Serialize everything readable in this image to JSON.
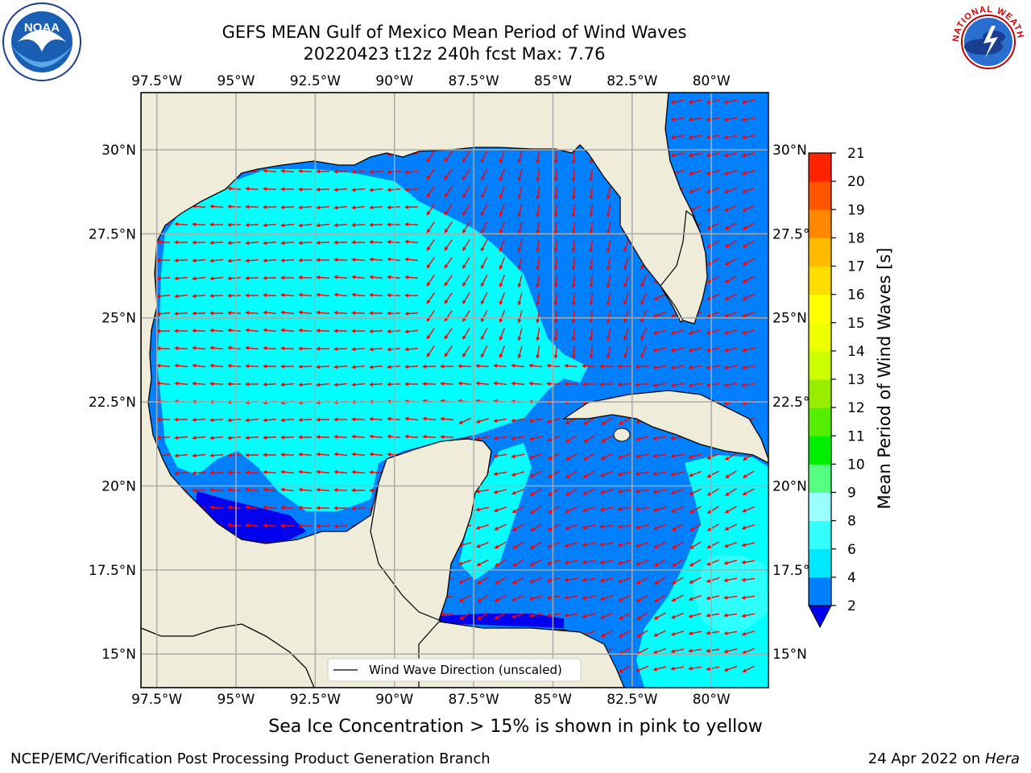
{
  "title_line1": "GEFS MEAN Gulf of Mexico Mean Period of Wind Waves",
  "title_line2": "20220423 t12z 240h fcst   Max: 7.76",
  "map": {
    "lon_ticks": [
      "97.5°W",
      "95°W",
      "92.5°W",
      "90°W",
      "87.5°W",
      "85°W",
      "82.5°W",
      "80°W"
    ],
    "lon_values": [
      -97.5,
      -95,
      -92.5,
      -90,
      -87.5,
      -85,
      -82.5,
      -80
    ],
    "lat_ticks": [
      "30°N",
      "27.5°N",
      "25°N",
      "22.5°N",
      "20°N",
      "17.5°N",
      "15°N"
    ],
    "lat_values": [
      30,
      27.5,
      25,
      22.5,
      20,
      17.5,
      15
    ],
    "lon_range": [
      -98,
      -78.2
    ],
    "lat_range": [
      14,
      31.7
    ],
    "land_color": "#efedda",
    "arrow_color": "#ff0000",
    "legend_label": "Wind Wave Direction (unscaled)"
  },
  "colorbar": {
    "label": "Mean Period of Wind Waves [s]",
    "ticks": [
      "2",
      "4",
      "6",
      "8",
      "9",
      "10",
      "11",
      "12",
      "13",
      "14",
      "15",
      "16",
      "17",
      "18",
      "19",
      "20",
      "21"
    ],
    "colors": [
      "#0080ff",
      "#00e8ff",
      "#33ffff",
      "#99ffff",
      "#55ff7f",
      "#00ee00",
      "#55ee00",
      "#99ee00",
      "#ccff00",
      "#eeff00",
      "#ffff00",
      "#ffdd00",
      "#ffbb00",
      "#ff8800",
      "#ff5500",
      "#ff2200"
    ],
    "under_color": "#0000ee"
  },
  "subtitle": "Sea Ice Concentration > 15% is shown in pink to yellow",
  "credit": "NCEP/EMC/Verification Post Processing Product Generation Branch",
  "date": "24 Apr 2022 on",
  "date_host": "Hera",
  "logos": {
    "noaa_text": "NOAA",
    "nws_text": "NATIONAL WEATHER SERVICE"
  }
}
